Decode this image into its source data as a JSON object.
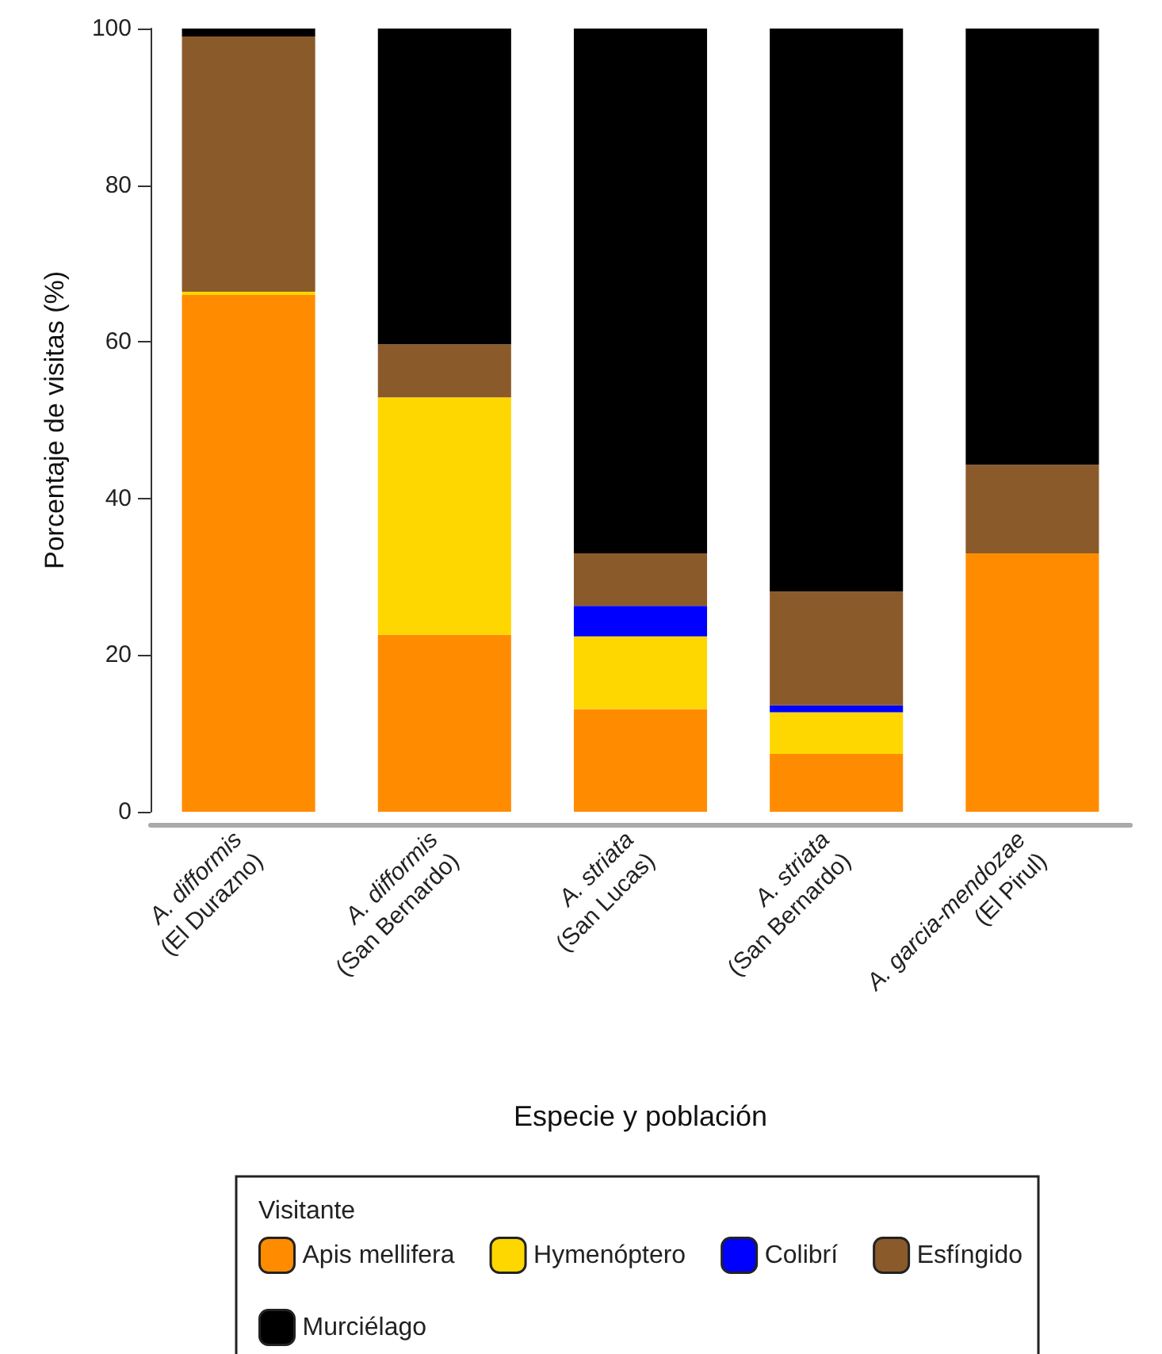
{
  "chart_data": {
    "type": "bar",
    "stacked": true,
    "xlabel": "Especie y población",
    "ylabel": "Porcentaje de visitas (%)",
    "legend_title": "Visitante",
    "legend": "bottom",
    "grid": false,
    "categories": [
      "A. difformis\n(El Durazno)",
      "A. difformis\n(San Bernardo)",
      "A. striata\n(San Lucas)",
      "A. striata\n(San Bernardo)",
      "A. garcia-mendozae\n(El Pirul)"
    ],
    "ylim": [
      0,
      100
    ],
    "yticks": [
      0,
      20,
      40,
      60,
      80,
      100
    ],
    "series": [
      {
        "name": "Apis mellifera",
        "color": "#ff8c00",
        "values": [
          66,
          22.6,
          13.1,
          7.4,
          33
        ]
      },
      {
        "name": "Hymenóptero",
        "color": "#ffd700",
        "values": [
          0.4,
          30.3,
          9.3,
          5.3,
          0
        ]
      },
      {
        "name": "Colibrí",
        "color": "#0000ff",
        "values": [
          0,
          0,
          3.9,
          0.9,
          0
        ]
      },
      {
        "name": "Esfíngido",
        "color": "#8b5a2b",
        "values": [
          32.6,
          6.8,
          6.7,
          14.5,
          11.3
        ]
      },
      {
        "name": "Murciélago",
        "color": "#000000",
        "values": [
          1,
          40.3,
          67,
          71.9,
          55.7
        ]
      }
    ]
  }
}
